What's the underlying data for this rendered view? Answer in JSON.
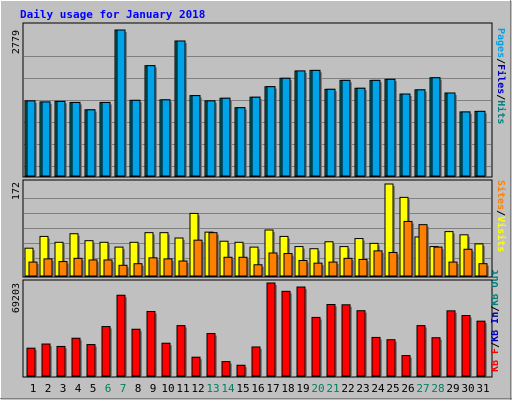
{
  "chart_data": [
    {
      "type": "bar",
      "title": "Daily usage for January 2018",
      "ymax_label": "2779",
      "ymax": 2779,
      "right_labels": [
        {
          "text": "Pages",
          "color": "#00a3e8"
        },
        {
          "text": "Files",
          "color": "#0000c0"
        },
        {
          "text": "Hits",
          "color": "#008080"
        }
      ],
      "series": [
        {
          "name": "Hits",
          "color": "#008080",
          "values": [
            1430,
            1410,
            1420,
            1400,
            1260,
            1400,
            2779,
            1440,
            2100,
            1450,
            2570,
            1530,
            1430,
            1480,
            1300,
            1500,
            1700,
            1860,
            2000,
            2010,
            1650,
            1820,
            1670,
            1820,
            1840,
            1560,
            1640,
            1870,
            1580,
            1220,
            1230
          ]
        },
        {
          "name": "Files",
          "color": "#00a3e8",
          "values": [
            1430,
            1410,
            1420,
            1400,
            1260,
            1400,
            2779,
            1440,
            2100,
            1450,
            2570,
            1530,
            1430,
            1480,
            1300,
            1500,
            1700,
            1860,
            2000,
            2010,
            1650,
            1820,
            1670,
            1820,
            1840,
            1560,
            1640,
            1870,
            1580,
            1220,
            1230
          ]
        },
        {
          "name": "Pages",
          "color": "#0000c0",
          "values": [
            0,
            0,
            0,
            0,
            0,
            0,
            0,
            0,
            0,
            0,
            0,
            0,
            0,
            0,
            0,
            0,
            0,
            0,
            0,
            0,
            0,
            0,
            0,
            0,
            0,
            0,
            0,
            0,
            0,
            0,
            0
          ]
        }
      ]
    },
    {
      "type": "bar",
      "ymax_label": "172",
      "ymax": 172,
      "right_labels": [
        {
          "text": "Sites",
          "color": "#ff8000"
        },
        {
          "text": "Visits",
          "color": "#ffff00"
        }
      ],
      "series": [
        {
          "name": "Visits",
          "color": "#ffff00",
          "values": [
            52,
            74,
            63,
            79,
            66,
            63,
            54,
            63,
            81,
            81,
            71,
            117,
            82,
            65,
            63,
            54,
            86,
            74,
            55,
            51,
            64,
            55,
            70,
            61,
            172,
            147,
            73,
            55,
            83,
            77,
            60
          ]
        },
        {
          "name": "Sites",
          "color": "#ff8000",
          "values": [
            26,
            32,
            27,
            33,
            30,
            30,
            20,
            23,
            34,
            32,
            28,
            67,
            81,
            35,
            35,
            21,
            43,
            42,
            29,
            24,
            26,
            33,
            31,
            47,
            44,
            102,
            96,
            54,
            26,
            50,
            23
          ]
        }
      ]
    },
    {
      "type": "bar",
      "ymax_label": "69203",
      "ymax": 69203,
      "right_labels": [
        {
          "text": "KB F",
          "color": "#ff0000"
        },
        {
          "text": "KB In",
          "color": "#0000c0"
        },
        {
          "text": "KB Out",
          "color": "#008080"
        }
      ],
      "series": [
        {
          "name": "KB F",
          "color": "#ff0000",
          "values": [
            20700,
            23800,
            22000,
            28100,
            23400,
            36800,
            60100,
            34800,
            48000,
            24400,
            37500,
            14000,
            31600,
            10700,
            8000,
            21600,
            69203,
            63000,
            66200,
            43600,
            53200,
            53000,
            48600,
            28700,
            27000,
            15200,
            37500,
            28500,
            48500,
            45000,
            40800
          ]
        }
      ]
    }
  ],
  "x_days": [
    {
      "label": "1",
      "color": "#000000"
    },
    {
      "label": "2",
      "color": "#000000"
    },
    {
      "label": "3",
      "color": "#000000"
    },
    {
      "label": "4",
      "color": "#000000"
    },
    {
      "label": "5",
      "color": "#000000"
    },
    {
      "label": "6",
      "color": "#00805f"
    },
    {
      "label": "7",
      "color": "#00805f"
    },
    {
      "label": "8",
      "color": "#000000"
    },
    {
      "label": "9",
      "color": "#000000"
    },
    {
      "label": "10",
      "color": "#000000"
    },
    {
      "label": "11",
      "color": "#000000"
    },
    {
      "label": "12",
      "color": "#000000"
    },
    {
      "label": "13",
      "color": "#00805f"
    },
    {
      "label": "14",
      "color": "#00805f"
    },
    {
      "label": "15",
      "color": "#000000"
    },
    {
      "label": "16",
      "color": "#000000"
    },
    {
      "label": "17",
      "color": "#000000"
    },
    {
      "label": "18",
      "color": "#000000"
    },
    {
      "label": "19",
      "color": "#000000"
    },
    {
      "label": "20",
      "color": "#00805f"
    },
    {
      "label": "21",
      "color": "#00805f"
    },
    {
      "label": "22",
      "color": "#000000"
    },
    {
      "label": "23",
      "color": "#000000"
    },
    {
      "label": "24",
      "color": "#000000"
    },
    {
      "label": "25",
      "color": "#000000"
    },
    {
      "label": "26",
      "color": "#000000"
    },
    {
      "label": "27",
      "color": "#00805f"
    },
    {
      "label": "28",
      "color": "#00805f"
    },
    {
      "label": "29",
      "color": "#000000"
    },
    {
      "label": "30",
      "color": "#000000"
    },
    {
      "label": "31",
      "color": "#000000"
    }
  ],
  "colors": {
    "background": "#c0c0c0",
    "plot": "#c0c0c0",
    "title": "#0000ff",
    "frame_dark": "#808080",
    "frame_light": "#ffffff",
    "gridline": "#808080"
  }
}
